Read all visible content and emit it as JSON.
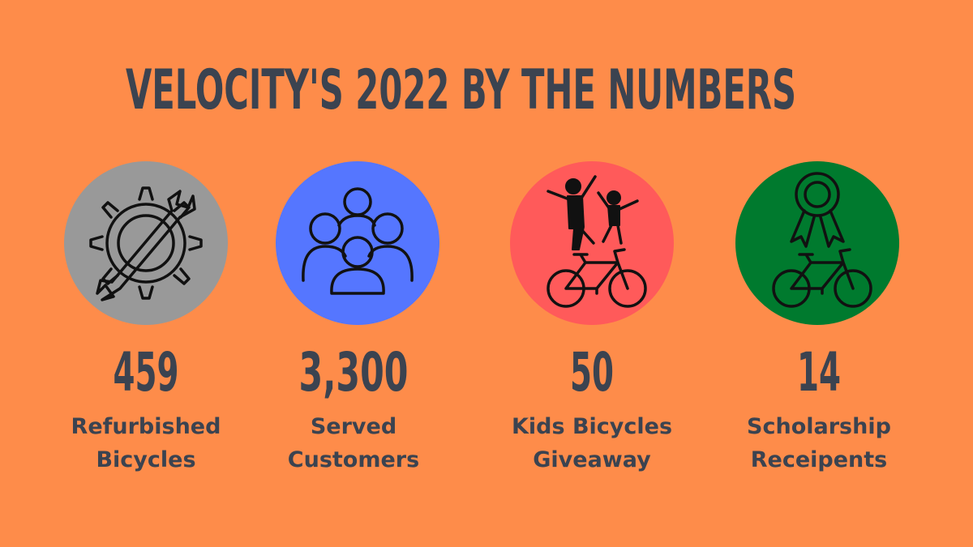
{
  "title": "VELOCITY'S 2022 BY THE NUMBERS",
  "stats": [
    {
      "value": "459",
      "label": [
        "Refurbished",
        "Bicycles"
      ]
    },
    {
      "value": "3,300",
      "label": [
        "Served",
        "Customers"
      ]
    },
    {
      "value": "50",
      "label": [
        "Kids Bicycles",
        "Giveaway"
      ]
    },
    {
      "value": "14",
      "label": [
        "Scholarship",
        "Receipents"
      ]
    }
  ]
}
